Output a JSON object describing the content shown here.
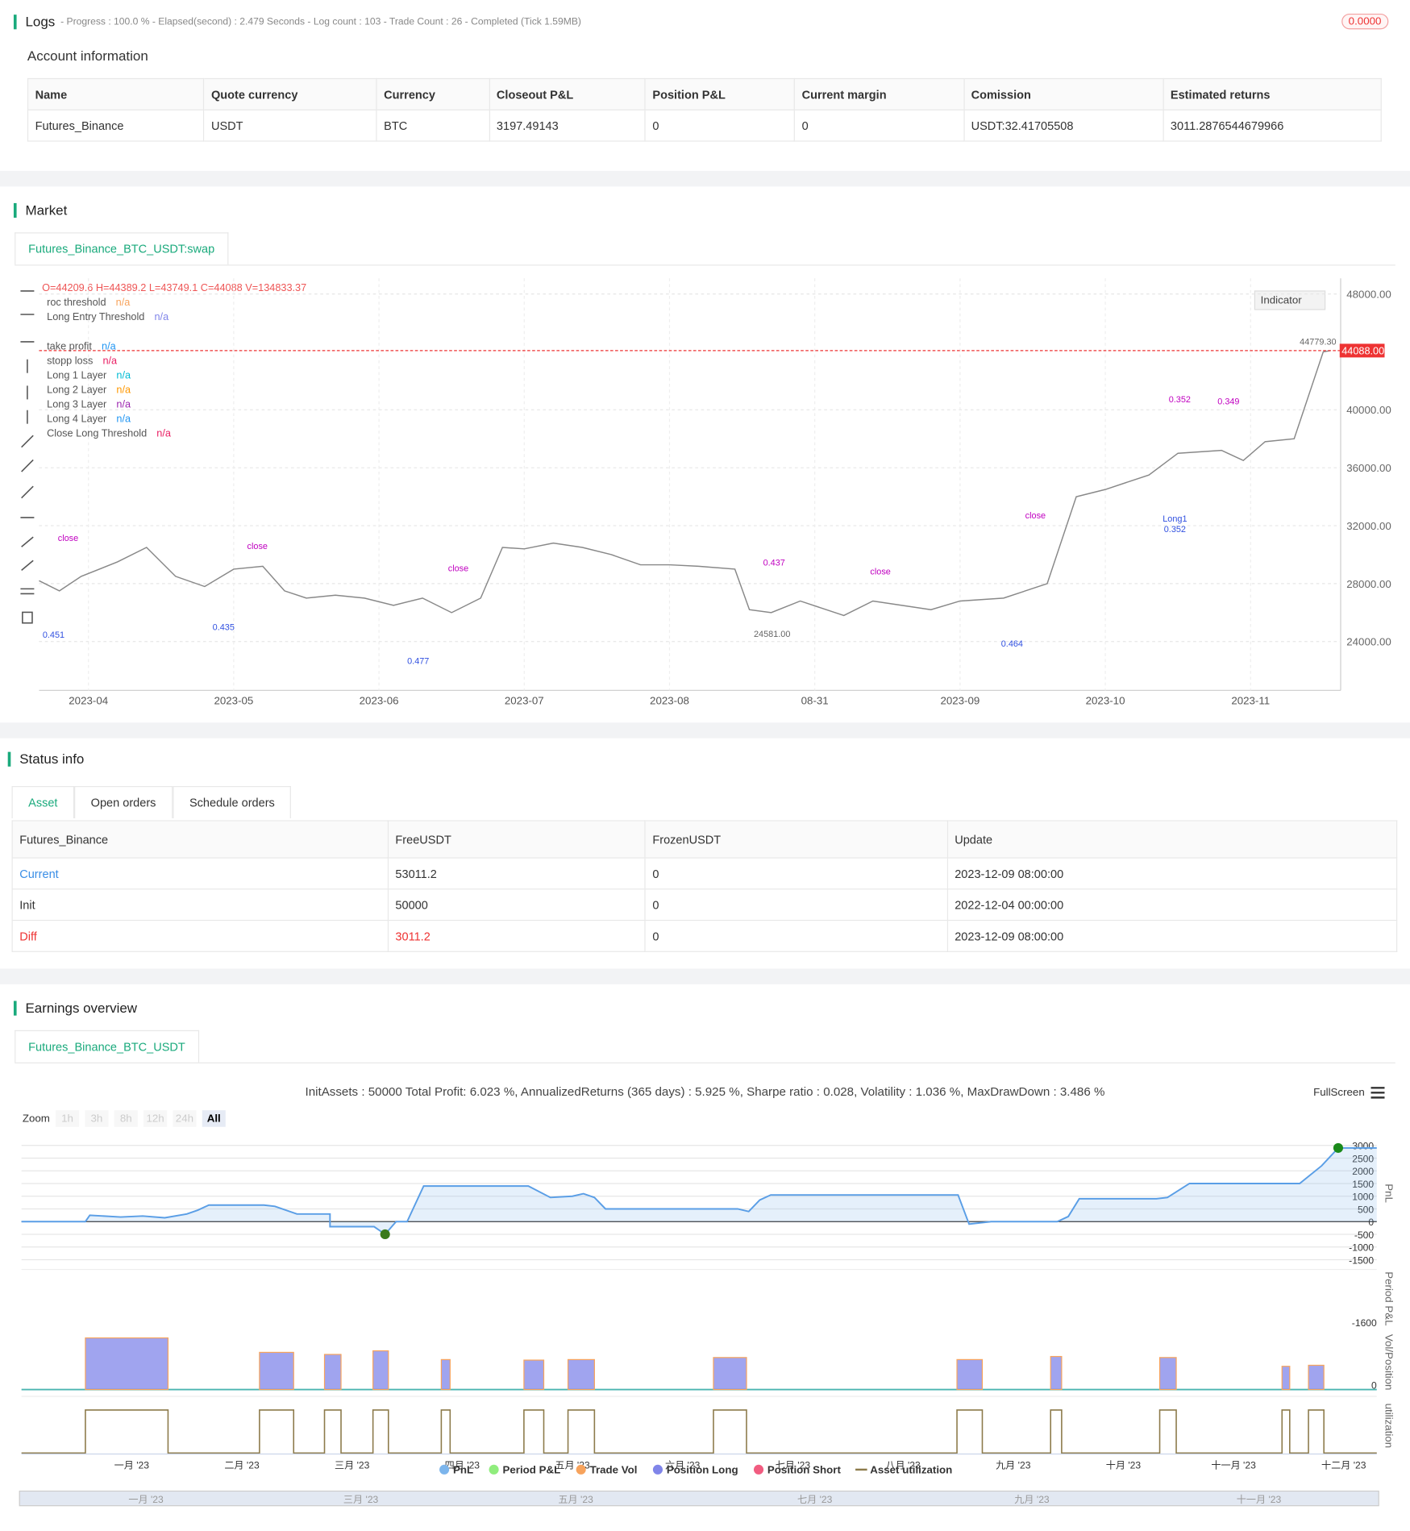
{
  "logs": {
    "title": "Logs",
    "status": "- Progress : 100.0 % - Elapsed(second) : 2.479 Seconds - Log count : 103 - Trade Count : 26 - Completed (Tick 1.59MB)",
    "badge": "0.0000"
  },
  "account": {
    "title": "Account information",
    "headers": [
      "Name",
      "Quote currency",
      "Currency",
      "Closeout P&L",
      "Position P&L",
      "Current margin",
      "Comission",
      "Estimated returns"
    ],
    "rows": [
      [
        "Futures_Binance",
        "USDT",
        "BTC",
        "3197.49143",
        "0",
        "0",
        "USDT:32.41705508",
        "3011.2876544679966"
      ]
    ]
  },
  "market": {
    "title": "Market",
    "tab": "Futures_Binance_BTC_USDT:swap",
    "ohlc": "O=44209.6 H=44389.2 L=43749.1 C=44088 V=134833.37",
    "indicator": "Indicator",
    "legend": [
      {
        "name": "roc threshold",
        "value": "n/a",
        "color": "#f7a35c"
      },
      {
        "name": "Long Entry Threshold",
        "value": "n/a",
        "color": "#8085e9"
      },
      {
        "name": "take profit",
        "value": "n/a",
        "color": "#2196f3"
      },
      {
        "name": "stopp loss",
        "value": "n/a",
        "color": "#e91e63"
      },
      {
        "name": "Long 1 Layer",
        "value": "n/a",
        "color": "#00bcd4"
      },
      {
        "name": "Long 2 Layer",
        "value": "n/a",
        "color": "#ff9800"
      },
      {
        "name": "Long 3 Layer",
        "value": "n/a",
        "color": "#9c27b0"
      },
      {
        "name": "Long 4 Layer",
        "value": "n/a",
        "color": "#2196f3"
      },
      {
        "name": "Close Long Threshold",
        "value": "n/a",
        "color": "#e91e63"
      }
    ],
    "chart_data": {
      "type": "line",
      "xlim": [
        3.66,
        12.62
      ],
      "ylim": [
        20630,
        49080
      ],
      "xticks": [
        {
          "value": 4,
          "label": "2023-04"
        },
        {
          "value": 5,
          "label": "2023-05"
        },
        {
          "value": 6,
          "label": "2023-06"
        },
        {
          "value": 7,
          "label": "2023-07"
        },
        {
          "value": 8,
          "label": "2023-08"
        },
        {
          "value": 9,
          "label": "08-31"
        },
        {
          "value": 10,
          "label": "2023-09"
        },
        {
          "value": 11,
          "label": "2023-10"
        },
        {
          "value": 12,
          "label": "2023-11"
        }
      ],
      "yticks": [
        {
          "value": 24000,
          "label": "24000.00"
        },
        {
          "value": 28000,
          "label": "28000.00"
        },
        {
          "value": 32000,
          "label": "32000.00"
        },
        {
          "value": 36000,
          "label": "36000.00"
        },
        {
          "value": 40000,
          "label": "40000.00"
        },
        {
          "value": 48000,
          "label": "48000.00"
        }
      ],
      "last_price": {
        "value": 44088,
        "label": "44088.00"
      },
      "series": [
        {
          "name": "close",
          "color": "#888888",
          "x": [
            3.66,
            3.8,
            3.95,
            4.2,
            4.4,
            4.6,
            4.8,
            5.0,
            5.2,
            5.35,
            5.5,
            5.7,
            5.9,
            6.1,
            6.3,
            6.5,
            6.7,
            6.85,
            7.0,
            7.2,
            7.4,
            7.6,
            7.8,
            8.0,
            8.2,
            8.45,
            8.55,
            8.7,
            8.9,
            9.2,
            9.4,
            9.6,
            9.8,
            10.0,
            10.3,
            10.6,
            10.8,
            11.0,
            11.3,
            11.5,
            11.8,
            11.95,
            12.1,
            12.3,
            12.5,
            12.55
          ],
          "values": [
            28200,
            27500,
            28500,
            29500,
            30500,
            28500,
            27800,
            29000,
            29200,
            27500,
            27000,
            27200,
            27000,
            26500,
            27000,
            26000,
            27000,
            30500,
            30400,
            30800,
            30500,
            30000,
            29300,
            29300,
            29200,
            29000,
            26200,
            26000,
            26800,
            25800,
            26800,
            26500,
            26200,
            26800,
            27000,
            28000,
            34000,
            34500,
            35500,
            37000,
            37200,
            36500,
            37800,
            38000,
            44000,
            44088
          ]
        }
      ],
      "annotations": [
        {
          "text": "close",
          "x": 3.86,
          "y": 31140,
          "color": "#c000c0"
        },
        {
          "text": "close",
          "x": 5.163,
          "y": 30603,
          "color": "#c000c0"
        },
        {
          "text": "close",
          "x": 6.546,
          "y": 29052,
          "color": "#c000c0"
        },
        {
          "text": "close",
          "x": 10.519,
          "y": 32693,
          "color": "#c000c0"
        },
        {
          "text": "close",
          "x": 9.452,
          "y": 28850,
          "color": "#c000c0"
        },
        {
          "text": "0.437",
          "x": 8.72,
          "y": 29456,
          "color": "#c000c0"
        },
        {
          "text": "0.352",
          "x": 11.512,
          "y": 40717,
          "color": "#c000c0"
        },
        {
          "text": "0.349",
          "x": 11.848,
          "y": 40583,
          "color": "#c000c0"
        },
        {
          "text": "Long1",
          "x": 11.479,
          "y": 32491,
          "color": "#3050e0"
        },
        {
          "text": "0.352",
          "x": 11.479,
          "y": 31750,
          "color": "#3050e0"
        },
        {
          "text": "0.451",
          "x": 3.76,
          "y": 24467,
          "color": "#3050e0"
        },
        {
          "text": "0.477",
          "x": 6.27,
          "y": 22646,
          "color": "#3050e0"
        },
        {
          "text": "0.464",
          "x": 10.358,
          "y": 23860,
          "color": "#3050e0"
        },
        {
          "text": "0.435",
          "x": 4.93,
          "y": 25007,
          "color": "#3050e0"
        }
      ],
      "price_labels": [
        {
          "x": 12.338,
          "value": 44779.3,
          "label": "44779.30"
        },
        {
          "x": 8.58,
          "value": 24581,
          "label": "24581.00"
        }
      ]
    }
  },
  "status": {
    "title": "Status info",
    "tabs": [
      "Asset",
      "Open orders",
      "Schedule orders"
    ],
    "headers": [
      "Futures_Binance",
      "FreeUSDT",
      "FrozenUSDT",
      "Update"
    ],
    "rows": [
      [
        "Current",
        "53011.2",
        "0",
        "2023-12-09 08:00:00"
      ],
      [
        "Init",
        "50000",
        "0",
        "2022-12-04 00:00:00"
      ],
      [
        "Diff",
        "3011.2",
        "0",
        "2023-12-09 08:00:00"
      ]
    ]
  },
  "earnings": {
    "title": "Earnings overview",
    "tab": "Futures_Binance_BTC_USDT",
    "summary": "InitAssets : 50000 Total Profit: 6.023 %, AnnualizedReturns (365 days) : 5.925 %, Sharpe ratio : 0.028, Volatility : 1.036 %, MaxDrawDown : 3.486 %",
    "fullscreen": "FullScreen",
    "zoom": "Zoom",
    "zoom_buttons": [
      "1h",
      "3h",
      "8h",
      "12h",
      "24h",
      "All"
    ],
    "chart_data": {
      "type": "line",
      "xlim": [
        0,
        12.3
      ],
      "ylim": [
        -1730,
        3308
      ],
      "yticks": [
        3000,
        2500,
        2000,
        1500,
        1000,
        500,
        0,
        -500,
        -1000,
        -1500
      ],
      "xticks": [
        {
          "value": 1,
          "label": "一月 '23"
        },
        {
          "value": 2,
          "label": "二月 '23"
        },
        {
          "value": 3,
          "label": "三月 '23"
        },
        {
          "value": 4,
          "label": "四月 '23"
        },
        {
          "value": 5,
          "label": "五月 '23"
        },
        {
          "value": 6,
          "label": "六月 '23"
        },
        {
          "value": 7,
          "label": "七月 '23"
        },
        {
          "value": 8,
          "label": "八月 '23"
        },
        {
          "value": 9,
          "label": "九月 '23"
        },
        {
          "value": 10,
          "label": "十月 '23"
        },
        {
          "value": 11,
          "label": "十一月 '23"
        },
        {
          "value": 12,
          "label": "十二月 '23"
        }
      ],
      "axis_titles": [
        "PnL",
        "Period P&L",
        "Vol/Position",
        "utilization"
      ],
      "period_tick": "-1600",
      "vol_tick": "0",
      "series": [
        {
          "name": "PnL",
          "color": "#7cb5ec",
          "x": [
            0,
            0.58,
            0.62,
            0.9,
            1.1,
            1.3,
            1.5,
            1.6,
            1.7,
            2.2,
            2.3,
            2.5,
            2.8,
            2.8,
            3.2,
            3.3,
            3.4,
            3.5,
            3.65,
            4.6,
            4.8,
            5.0,
            5.1,
            5.2,
            5.3,
            6.5,
            6.6,
            6.7,
            6.8,
            8.5,
            8.6,
            8.8,
            9.4,
            9.5,
            9.6,
            10.3,
            10.4,
            10.6,
            11.6,
            11.8,
            11.95,
            12.3
          ],
          "values": [
            0,
            0,
            250,
            180,
            220,
            150,
            300,
            450,
            650,
            650,
            600,
            300,
            300,
            -200,
            -200,
            -500,
            0,
            0,
            1400,
            1400,
            950,
            1000,
            1100,
            950,
            500,
            500,
            400,
            850,
            1050,
            1050,
            -100,
            0,
            0,
            200,
            900,
            900,
            950,
            1500,
            1500,
            2200,
            2900,
            2900
          ]
        },
        {
          "name": "Period P&L",
          "color": "#90ed7d"
        },
        {
          "name": "Trade Vol",
          "color": "#f7a35c"
        },
        {
          "name": "Position Long",
          "color": "#8085e9"
        },
        {
          "name": "Position Short",
          "color": "#f15c80"
        },
        {
          "name": "Asset utilization",
          "color": "#8c7a4a"
        }
      ],
      "positions": {
        "ylim": [
          0,
          1.04
        ],
        "x0": [
          0.58,
          2.16,
          2.75,
          3.19,
          3.81,
          4.56,
          4.96,
          6.28,
          8.49,
          9.34,
          10.33,
          11.44,
          11.68
        ],
        "x1": [
          1.33,
          2.47,
          2.9,
          3.33,
          3.89,
          4.74,
          5.2,
          6.58,
          8.72,
          9.44,
          10.48,
          11.51,
          11.82
        ],
        "values": [
          1,
          0.72,
          0.68,
          0.75,
          0.58,
          0.57,
          0.58,
          0.62,
          0.58,
          0.64,
          0.62,
          0.45,
          0.47
        ]
      },
      "navigator_ticks": [
        {
          "value": 1.13,
          "label": "一月 '23"
        },
        {
          "value": 3.08,
          "label": "三月 '23"
        },
        {
          "value": 5.03,
          "label": "五月 '23"
        },
        {
          "value": 7.2,
          "label": "七月 '23"
        },
        {
          "value": 9.17,
          "label": "九月 '23"
        },
        {
          "value": 11.23,
          "label": "十一月 '23"
        }
      ]
    }
  }
}
